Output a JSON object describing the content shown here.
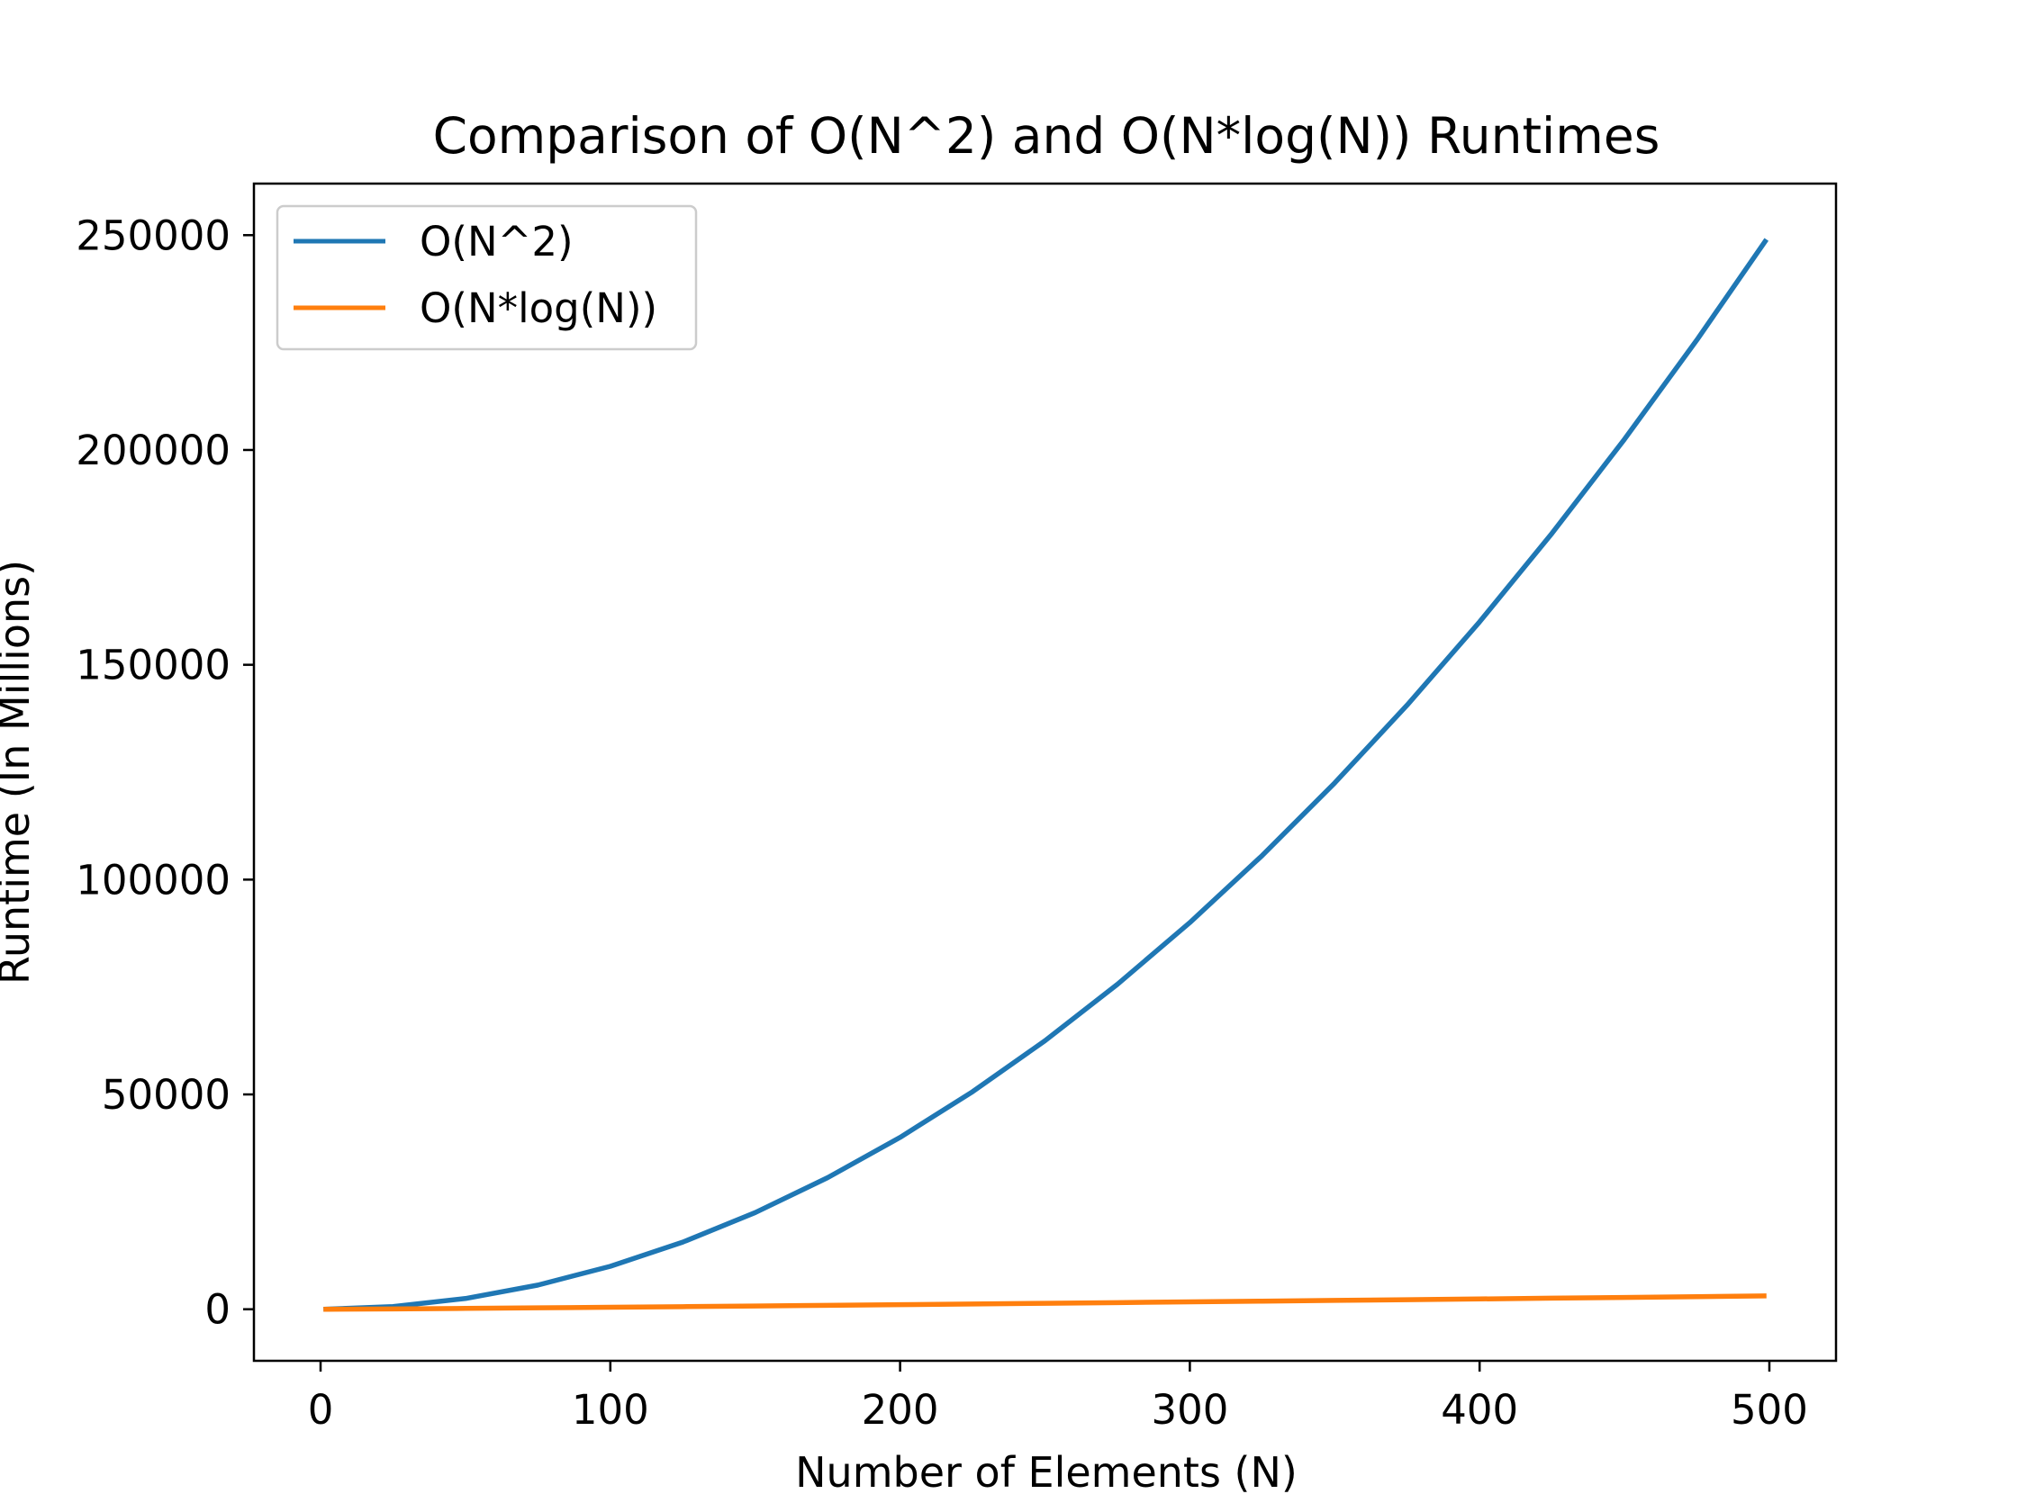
{
  "chart_data": {
    "type": "line",
    "title": "Comparison of O(N^2) and O(N*log(N)) Runtimes",
    "xlabel": "Number of Elements (N)",
    "ylabel": "Runtime (In Millions)",
    "xlim": [
      -23,
      523
    ],
    "ylim": [
      -12000,
      262000
    ],
    "xticks": [
      0,
      100,
      200,
      300,
      400,
      500
    ],
    "yticks": [
      0,
      50000,
      100000,
      150000,
      200000,
      250000
    ],
    "xtick_labels": [
      "0",
      "100",
      "200",
      "300",
      "400",
      "500"
    ],
    "ytick_labels": [
      "0",
      "50000",
      "100000",
      "150000",
      "200000",
      "250000"
    ],
    "grid": false,
    "legend_position": "upper-left",
    "x": [
      1,
      25,
      50,
      75,
      100,
      125,
      150,
      175,
      200,
      225,
      250,
      275,
      300,
      325,
      350,
      375,
      400,
      425,
      450,
      475,
      499
    ],
    "series": [
      {
        "name": "O(N^2)",
        "color": "#1f77b4",
        "values": [
          1,
          625,
          2500,
          5625,
          10000,
          15625,
          22500,
          30625,
          40000,
          50625,
          62500,
          75625,
          90000,
          105625,
          122500,
          140625,
          160000,
          180625,
          202500,
          225625,
          249001
        ]
      },
      {
        "name": "O(N*log(N))",
        "color": "#ff7f0e",
        "values": [
          0,
          80,
          196,
          324,
          461,
          604,
          752,
          904,
          1060,
          1219,
          1380,
          1544,
          1711,
          1880,
          2051,
          2223,
          2397,
          2573,
          2750,
          2928,
          3100
        ]
      }
    ]
  }
}
